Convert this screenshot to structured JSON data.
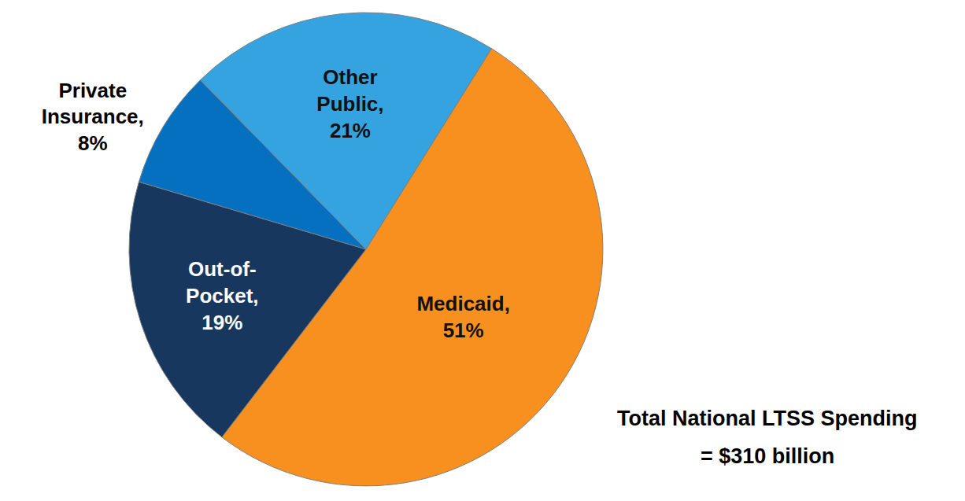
{
  "chart_data": {
    "type": "pie",
    "categories": [
      "Medicaid,",
      "Out-of-Pocket,",
      "Private Insurance,",
      "Other Public,"
    ],
    "values": [
      51,
      19,
      8,
      21
    ],
    "value_labels": [
      "51%",
      "19%",
      "8%",
      "21%"
    ],
    "colors": [
      "#f7901e",
      "#17375e",
      "#0570c0",
      "#35a3e0"
    ],
    "data_labels": true,
    "annotations": [
      "Total National LTSS Spending",
      "= $310 billion"
    ]
  }
}
